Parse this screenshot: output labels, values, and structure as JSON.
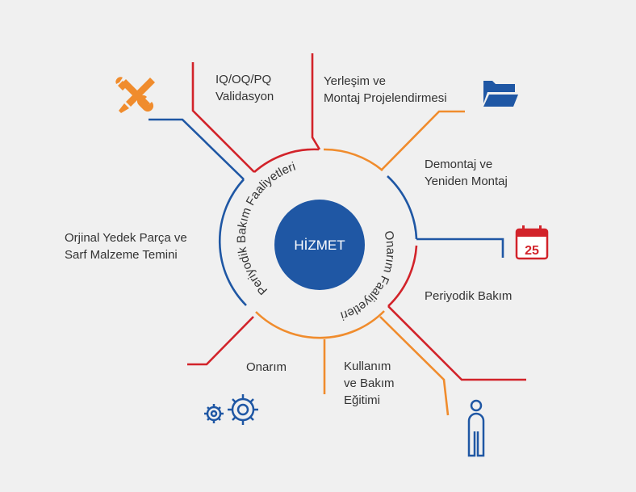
{
  "center": {
    "title": "HİZMET"
  },
  "ring": {
    "left_text": "Periyodik Bakım Faaliyetleri",
    "right_text": "Onarım Faaliyetleri"
  },
  "labels": {
    "validation": [
      "IQ/OQ/PQ",
      "Validasyon"
    ],
    "layout": [
      "Yerleşim ve",
      "Montaj Projelendirmesi"
    ],
    "dismantle": [
      "Demontaj ve",
      "Yeniden Montaj"
    ],
    "spare_parts": [
      "Orjinal Yedek Parça ve",
      "Sarf Malzeme Temini"
    ],
    "periodic": [
      "Periyodik Bakım"
    ],
    "repair": [
      "Onarım"
    ],
    "training": [
      "Kullanım",
      "ve Bakım",
      "Eğitimi"
    ]
  },
  "calendar_day": "25",
  "colors": {
    "blue": "#1f57a4",
    "red": "#d2232a",
    "orange": "#f08c2d",
    "background": "#f0f0f0"
  },
  "icons": [
    "tools-icon",
    "folder-icon",
    "calendar-icon",
    "gears-icon",
    "person-icon"
  ]
}
